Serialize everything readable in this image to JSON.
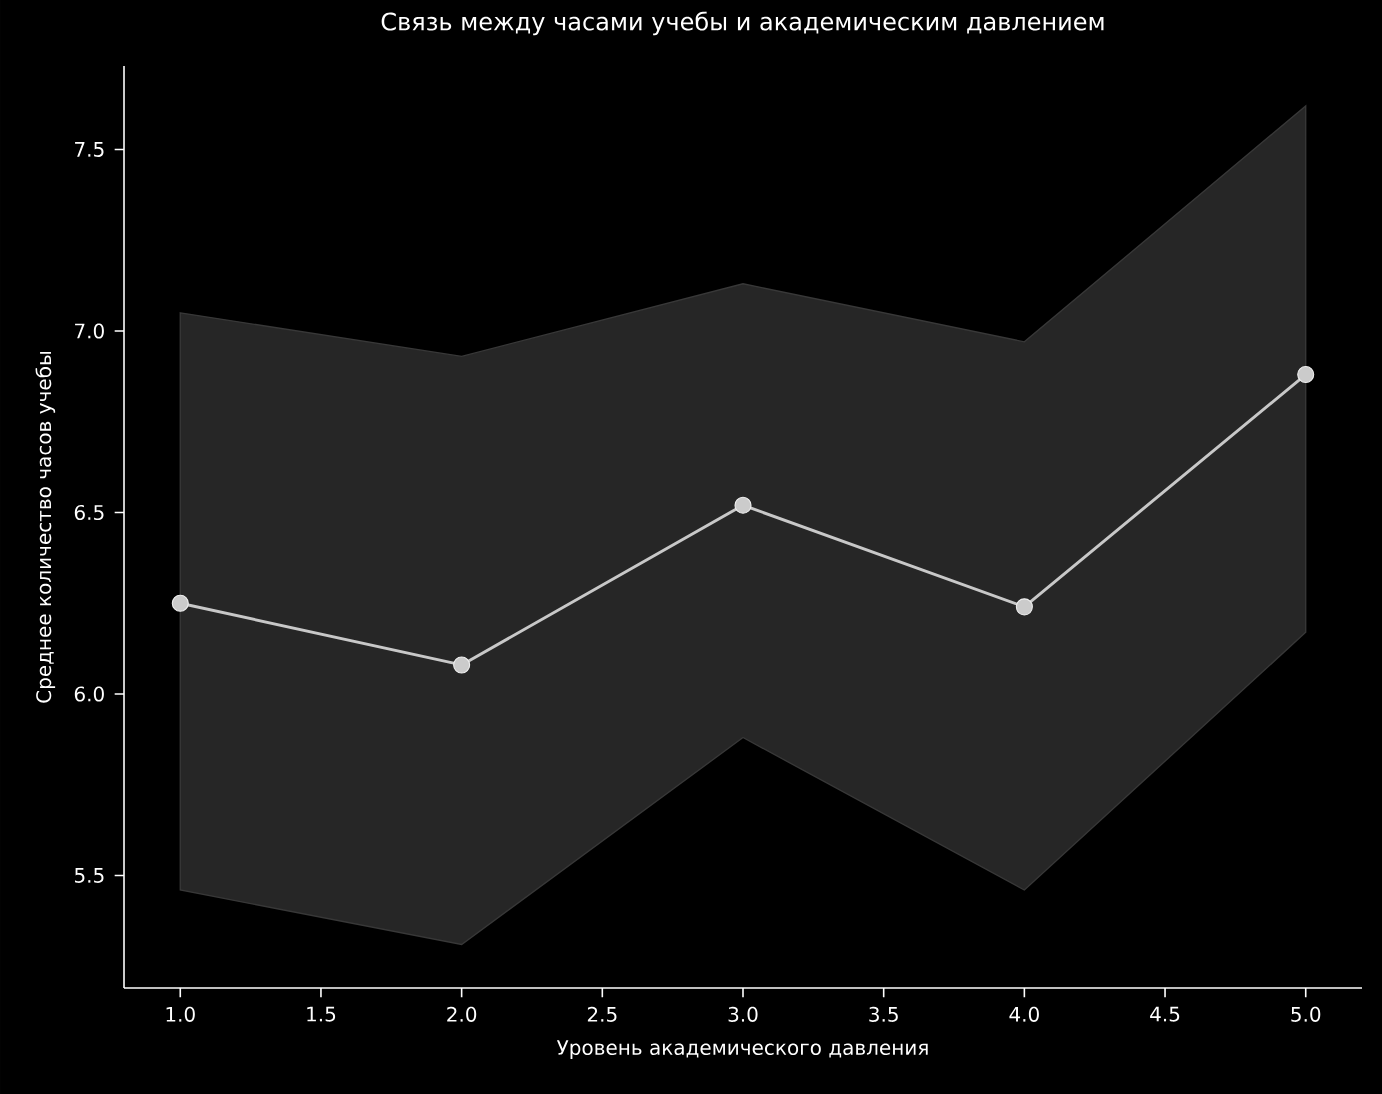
{
  "chart_data": {
    "type": "line",
    "title": "Связь между часами учебы и академическим давлением",
    "xlabel": "Уровень академического давления",
    "ylabel": "Среднее количество часов учебы",
    "x": [
      1,
      2,
      3,
      4,
      5
    ],
    "series": [
      {
        "color": "#c8c8c8",
        "values": [
          6.25,
          6.08,
          6.52,
          6.24,
          6.88
        ],
        "lower": [
          5.46,
          5.31,
          5.88,
          5.46,
          6.17
        ],
        "upper": [
          7.05,
          6.93,
          7.13,
          6.97,
          7.62
        ]
      }
    ],
    "marker": "circle",
    "line_style": "solid",
    "xlim": [
      0.8,
      5.2
    ],
    "ylim": [
      5.19,
      7.73
    ],
    "xticks": [
      {
        "value": 1,
        "label": "1.0"
      },
      {
        "value": 1.5,
        "label": "1.5"
      },
      {
        "value": 2,
        "label": "2.0"
      },
      {
        "value": 2.5,
        "label": "2.5"
      },
      {
        "value": 3,
        "label": "3.0"
      },
      {
        "value": 3.5,
        "label": "3.5"
      },
      {
        "value": 4,
        "label": "4.0"
      },
      {
        "value": 4.5,
        "label": "4.5"
      },
      {
        "value": 5,
        "label": "5.0"
      }
    ],
    "yticks": [
      {
        "value": 5.5,
        "label": "5.5"
      },
      {
        "value": 6,
        "label": "6.0"
      },
      {
        "value": 6.5,
        "label": "6.5"
      },
      {
        "value": 7,
        "label": "7.0"
      },
      {
        "value": 7.5,
        "label": "7.5"
      }
    ]
  }
}
